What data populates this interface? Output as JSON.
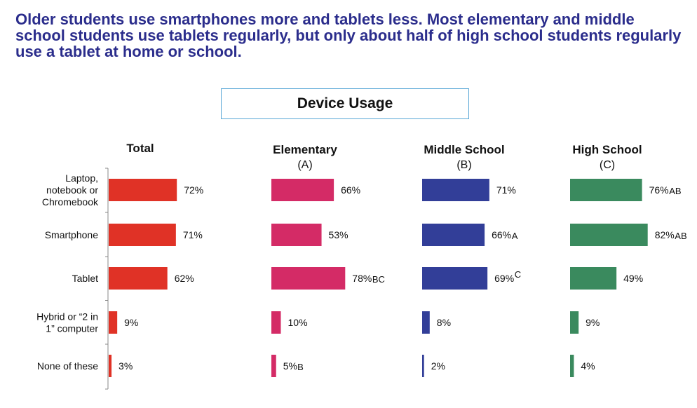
{
  "headline": "Older students use smartphones more and tablets less.  Most elementary and middle school students use tablets regularly, but only about half of high school students regularly use a tablet at home or school.",
  "chart_data": {
    "type": "bar",
    "title": "Device Usage",
    "orientation": "horizontal",
    "categories": [
      [
        "Laptop,",
        "notebook or",
        "Chromebook"
      ],
      [
        "Smartphone"
      ],
      [
        "Tablet"
      ],
      [
        "Hybrid or “2 in",
        "1” computer"
      ],
      [
        "None of these"
      ]
    ],
    "series": [
      {
        "name": "Total",
        "sub": "",
        "color": "#e03226",
        "values": [
          72,
          71,
          62,
          9,
          3
        ],
        "labels": [
          "72%",
          "71%",
          "62%",
          "9%",
          "3%"
        ],
        "sig": [
          "",
          "",
          "",
          "",
          ""
        ]
      },
      {
        "name": "Elementary",
        "sub": "(A)",
        "color": "#d42b66",
        "values": [
          66,
          53,
          78,
          10,
          5
        ],
        "labels": [
          "66%",
          "53%",
          "78%",
          "10%",
          "5%"
        ],
        "sig": [
          "",
          "",
          "BC",
          "",
          "B"
        ]
      },
      {
        "name": "Middle School",
        "sub": "(B)",
        "color": "#323e98",
        "values": [
          71,
          66,
          69,
          8,
          2
        ],
        "labels": [
          "71%",
          "66%",
          "69%",
          "8%",
          "2%"
        ],
        "sig": [
          "",
          "A",
          "C",
          "",
          ""
        ]
      },
      {
        "name": "High School",
        "sub": "(C)",
        "color": "#3a8a5e",
        "values": [
          76,
          82,
          49,
          9,
          4
        ],
        "labels": [
          "76%",
          "82%",
          "49%",
          "9%",
          "4%"
        ],
        "sig": [
          "AB",
          "AB",
          "",
          "",
          ""
        ]
      }
    ]
  }
}
